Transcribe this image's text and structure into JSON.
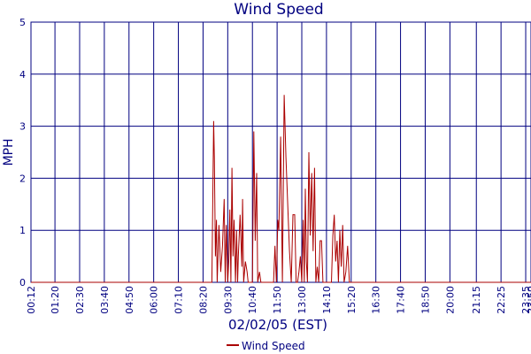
{
  "chart_data": {
    "type": "line",
    "title": "Wind Speed",
    "xlabel": "02/02/05 (EST)",
    "ylabel": "MPH",
    "ylim": [
      0,
      5
    ],
    "yticks": [
      0,
      1,
      2,
      3,
      4,
      5
    ],
    "grid": true,
    "legend_position": "bottom-center",
    "colors": {
      "title": "#000080",
      "axis": "#000080",
      "grid": "#000080",
      "series": "#aa0000"
    },
    "xtick_labels": [
      "00:12",
      "01:20",
      "02:30",
      "03:40",
      "04:50",
      "06:00",
      "07:10",
      "08:20",
      "09:30",
      "10:40",
      "11:50",
      "13:00",
      "14:10",
      "15:20",
      "16:30",
      "17:40",
      "18:50",
      "20:00",
      "21:15",
      "22:25",
      "23:35",
      "23:50"
    ],
    "series": [
      {
        "name": "Wind Speed",
        "x": [
          "00:12",
          "08:45",
          "08:50",
          "08:52",
          "08:55",
          "08:58",
          "09:00",
          "09:05",
          "09:10",
          "09:15",
          "09:20",
          "09:23",
          "09:26",
          "09:30",
          "09:33",
          "09:36",
          "09:39",
          "09:42",
          "09:45",
          "09:48",
          "09:52",
          "09:55",
          "09:58",
          "10:00",
          "10:05",
          "10:10",
          "10:12",
          "10:15",
          "10:20",
          "10:25",
          "10:28",
          "10:31",
          "10:33",
          "10:36",
          "10:40",
          "10:44",
          "10:48",
          "10:52",
          "10:55",
          "11:00",
          "11:04",
          "11:08",
          "11:12",
          "11:16",
          "11:20",
          "11:25",
          "11:30",
          "11:35",
          "11:40",
          "11:44",
          "11:48",
          "11:52",
          "11:55",
          "12:00",
          "12:05",
          "12:10",
          "12:15",
          "12:20",
          "12:25",
          "12:30",
          "12:35",
          "12:40",
          "12:44",
          "12:48",
          "12:52",
          "12:56",
          "13:00",
          "13:04",
          "13:07",
          "13:10",
          "13:13",
          "13:16",
          "13:20",
          "13:24",
          "13:28",
          "13:32",
          "13:36",
          "13:40",
          "13:44",
          "13:48",
          "13:52",
          "13:56",
          "14:00",
          "14:04",
          "14:08",
          "14:12",
          "14:16",
          "14:20",
          "14:24",
          "14:28",
          "14:32",
          "14:36",
          "14:40",
          "14:44",
          "14:48",
          "14:52",
          "14:56",
          "15:00",
          "15:05",
          "15:10",
          "15:15",
          "15:20",
          "15:25",
          "15:30",
          "15:35",
          "15:40",
          "15:45",
          "15:50",
          "15:55",
          "16:00",
          "16:05",
          "16:10",
          "16:15",
          "16:20",
          "16:25",
          "16:30",
          "16:35",
          "23:50"
        ],
        "y": [
          0,
          0,
          3.1,
          2.4,
          0.5,
          1.2,
          0,
          1.1,
          0.2,
          0.7,
          1.6,
          0,
          1.1,
          0,
          0.4,
          1.4,
          0,
          2.2,
          0.5,
          1.2,
          0,
          1.0,
          0,
          0.5,
          1.3,
          0.3,
          1.6,
          0,
          0.4,
          0.2,
          0,
          0,
          0,
          0,
          0,
          2.9,
          0.8,
          2.1,
          0,
          0.2,
          0,
          0,
          0,
          0,
          0,
          0,
          0,
          0,
          0,
          0.7,
          0,
          1.2,
          1.0,
          2.8,
          0,
          3.6,
          2.4,
          1.5,
          0.6,
          0,
          1.3,
          1.3,
          0,
          0,
          0.2,
          0.5,
          0,
          1.2,
          0,
          1.8,
          0.4,
          0,
          2.5,
          0.9,
          2.1,
          0.6,
          2.2,
          0,
          0.3,
          0,
          0.8,
          0.8,
          0,
          0,
          0,
          0,
          0,
          0,
          0,
          0.9,
          1.3,
          0.4,
          0.8,
          0,
          1.0,
          0.3,
          1.1,
          0,
          0.2,
          0.7,
          0,
          0,
          0,
          0,
          0,
          0,
          0,
          0,
          0,
          0,
          0,
          0,
          0,
          0,
          0,
          0,
          0,
          0
        ]
      }
    ]
  }
}
